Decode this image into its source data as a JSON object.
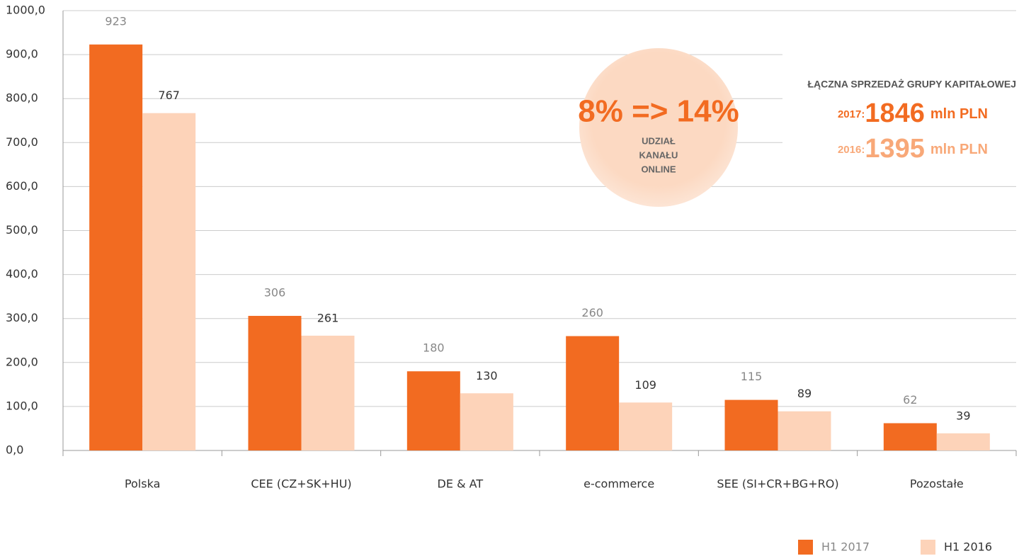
{
  "chart_data": {
    "type": "bar",
    "categories": [
      "Polska",
      "CEE (CZ+SK+HU)",
      "DE & AT",
      "e-commerce",
      "SEE (SI+CR+BG+RO)",
      "Pozostałe"
    ],
    "series": [
      {
        "name": "H1 2017",
        "color": "#f26b21",
        "values": [
          923,
          306,
          180,
          260,
          115,
          62
        ]
      },
      {
        "name": "H1 2016",
        "color": "#fdd3b9",
        "values": [
          767,
          261,
          130,
          109,
          89,
          39
        ]
      }
    ],
    "ylim": [
      0,
      1000
    ],
    "yticks": [
      {
        "value": 0,
        "label": "0,0"
      },
      {
        "value": 100,
        "label": "100,0"
      },
      {
        "value": 200,
        "label": "200,0"
      },
      {
        "value": 300,
        "label": "300,0"
      },
      {
        "value": 400,
        "label": "400,0"
      },
      {
        "value": 500,
        "label": "500,0"
      },
      {
        "value": 600,
        "label": "600,0"
      },
      {
        "value": 700,
        "label": "700,0"
      },
      {
        "value": 800,
        "label": "800,0"
      },
      {
        "value": 900,
        "label": "900,0"
      },
      {
        "value": 1000,
        "label": "1000,0"
      }
    ],
    "grid": true,
    "legend": "bottom-right",
    "annotations": {
      "circle": {
        "headline": "8% => 14%",
        "lines": [
          "UDZIAŁ",
          "KANAŁU",
          "ONLINE"
        ]
      },
      "totals": {
        "title": "ŁĄCZNA SPRZEDAŻ GRUPY KAPITAŁOWEJ",
        "rows": [
          {
            "year": "2017:",
            "value": "1846",
            "unit": "mln PLN"
          },
          {
            "year": "2016:",
            "value": "1395",
            "unit": "mln PLN"
          }
        ]
      }
    }
  }
}
